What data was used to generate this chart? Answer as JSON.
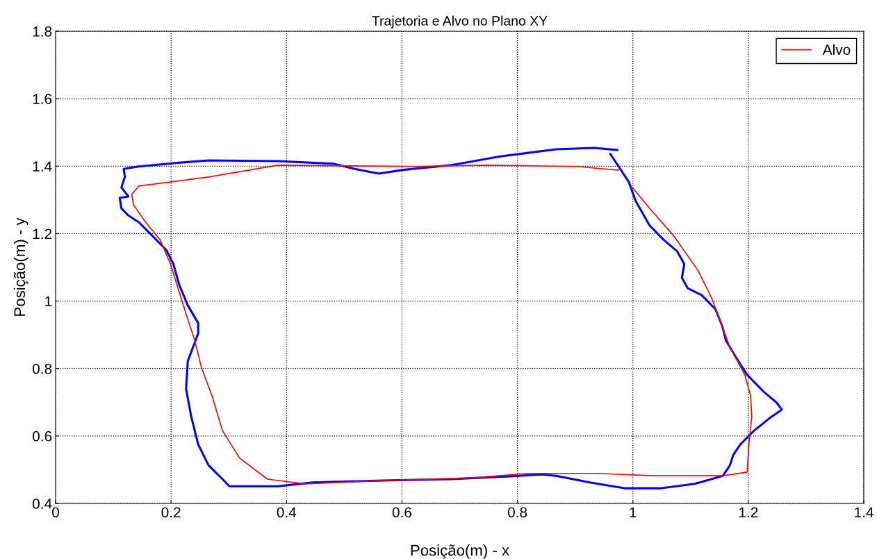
{
  "chart_data": {
    "type": "line",
    "title": "Trajetoria e Alvo no Plano XY",
    "xlabel": "Posição(m) - x",
    "ylabel": "Posição(m) - y",
    "xlim": [
      0,
      1.4
    ],
    "ylim": [
      0.4,
      1.8
    ],
    "xticks": [
      0,
      0.2,
      0.4,
      0.6,
      0.8,
      1,
      1.2,
      1.4
    ],
    "yticks": [
      0.4,
      0.6,
      0.8,
      1,
      1.2,
      1.4,
      1.6,
      1.8
    ],
    "grid": true,
    "legend": "top right",
    "line_style": "solid",
    "marker": "none",
    "series": [
      {
        "color": "#0000ff",
        "x": [
          0.961,
          0.993,
          1.005,
          1.029,
          1.053,
          1.077,
          1.089,
          1.085,
          1.095,
          1.119,
          1.143,
          1.155,
          1.161,
          1.179,
          1.198,
          1.228,
          1.249,
          1.258,
          1.24,
          1.21,
          1.186,
          1.174,
          1.168,
          1.156,
          1.107,
          1.047,
          0.987,
          0.927,
          0.867,
          0.843,
          0.782,
          0.686,
          0.566,
          0.445,
          0.385,
          0.325,
          0.301,
          0.289,
          0.265,
          0.247,
          0.235,
          0.226,
          0.229,
          0.247,
          0.247,
          0.229,
          0.214,
          0.204,
          0.192,
          0.168,
          0.144,
          0.126,
          0.114,
          0.111,
          0.126,
          0.114,
          0.12,
          0.118,
          0.144,
          0.205,
          0.265,
          0.385,
          0.482,
          0.518,
          0.56,
          0.602,
          0.686,
          0.77,
          0.867,
          0.933,
          0.973
        ],
        "values": [
          1.436,
          1.353,
          1.296,
          1.224,
          1.182,
          1.147,
          1.11,
          1.069,
          1.038,
          1.018,
          0.976,
          0.925,
          0.884,
          0.832,
          0.781,
          0.729,
          0.699,
          0.678,
          0.657,
          0.616,
          0.575,
          0.544,
          0.513,
          0.482,
          0.458,
          0.445,
          0.445,
          0.462,
          0.482,
          0.486,
          0.48,
          0.472,
          0.468,
          0.462,
          0.451,
          0.451,
          0.451,
          0.472,
          0.513,
          0.575,
          0.657,
          0.74,
          0.822,
          0.904,
          0.935,
          0.987,
          1.049,
          1.11,
          1.151,
          1.193,
          1.234,
          1.254,
          1.275,
          1.306,
          1.31,
          1.337,
          1.368,
          1.392,
          1.399,
          1.409,
          1.417,
          1.415,
          1.407,
          1.392,
          1.378,
          1.389,
          1.403,
          1.429,
          1.45,
          1.454,
          1.448
        ]
      },
      {
        "name": "Alvo",
        "color": "#ff0000",
        "x": [
          0.999,
          1.029,
          1.071,
          1.113,
          1.137,
          1.155,
          1.168,
          1.194,
          1.204,
          1.206,
          1.201,
          1.198,
          1.156,
          1.035,
          0.939,
          0.818,
          0.722,
          0.566,
          0.433,
          0.367,
          0.319,
          0.289,
          0.271,
          0.253,
          0.241,
          0.229,
          0.214,
          0.199,
          0.181,
          0.156,
          0.135,
          0.132,
          0.144,
          0.265,
          0.385,
          0.506,
          0.626,
          0.746,
          0.903,
          0.975
        ],
        "values": [
          1.337,
          1.275,
          1.193,
          1.09,
          1.007,
          0.925,
          0.863,
          0.781,
          0.719,
          0.657,
          0.575,
          0.493,
          0.482,
          0.482,
          0.489,
          0.489,
          0.476,
          0.468,
          0.458,
          0.472,
          0.534,
          0.616,
          0.719,
          0.801,
          0.884,
          0.946,
          1.028,
          1.11,
          1.182,
          1.234,
          1.285,
          1.316,
          1.341,
          1.368,
          1.403,
          1.401,
          1.399,
          1.403,
          1.399,
          1.388
        ]
      }
    ]
  }
}
